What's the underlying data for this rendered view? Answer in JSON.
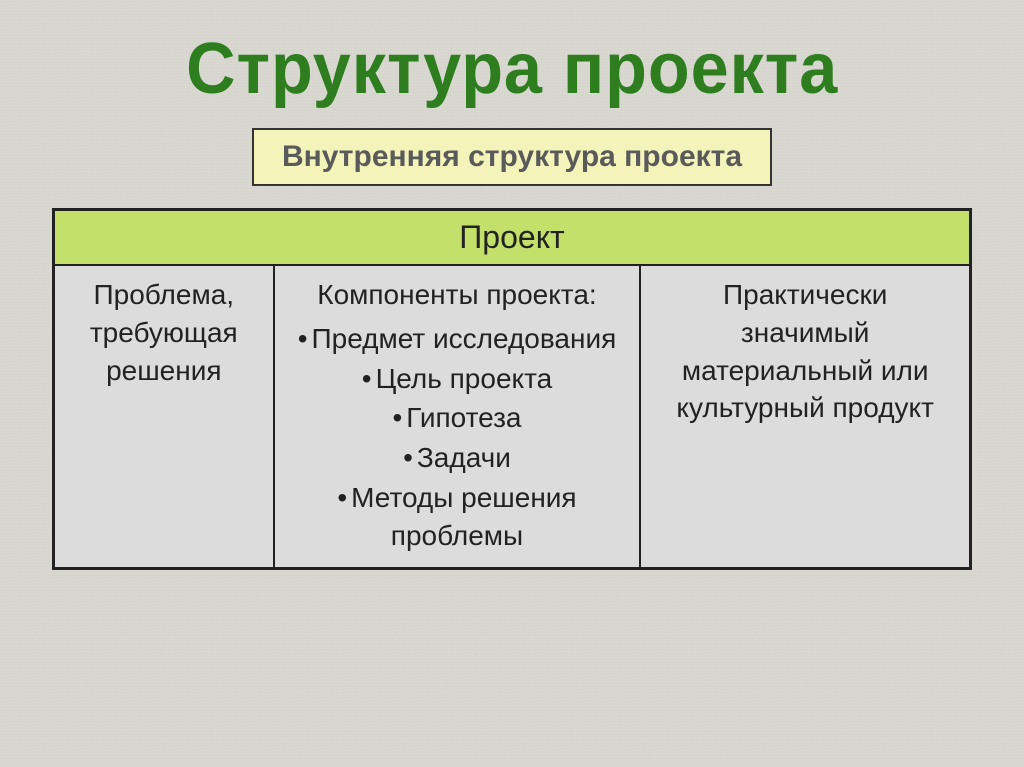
{
  "title": "Структура проекта",
  "subtitle": "Внутренняя структура проекта",
  "colors": {
    "title_color": "#2e7d1f",
    "subtitle_bg": "#f4f3b9",
    "subtitle_text": "#5a5a5a",
    "table_header_bg": "#c3e06a",
    "table_header_text": "#222222",
    "cell_bg": "#dcdcdc",
    "cell_text": "#222222",
    "border_color": "#222222",
    "page_bg": "#d8d8d0"
  },
  "typography": {
    "title_fontsize": 72,
    "subtitle_fontsize": 30,
    "header_fontsize": 32,
    "cell_fontsize": 28,
    "font_family": "Arial"
  },
  "table": {
    "header": "Проект",
    "columns": [
      {
        "width_pct": 24,
        "text": "Проблема, требующая решения"
      },
      {
        "width_pct": 40,
        "heading": "Компоненты проекта:",
        "bullets": [
          "Предмет исследования",
          "Цель проекта",
          "Гипотеза",
          "Задачи",
          "Методы решения проблемы"
        ]
      },
      {
        "width_pct": 36,
        "text": "Практически значимый материальный или культурный продукт"
      }
    ]
  }
}
